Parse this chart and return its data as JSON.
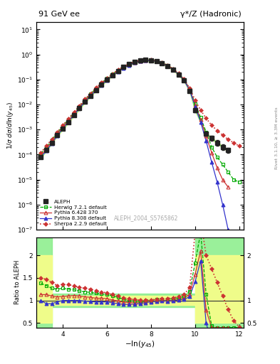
{
  "title_left": "91 GeV ee",
  "title_right": "γ*/Z (Hadronic)",
  "ylabel_main": "1/σ dσ/dln(y_{45})",
  "ylabel_ratio": "Ratio to ALEPH",
  "xlabel": "-ln(y_{45})",
  "watermark": "ALEPH_2004_S5765862",
  "right_label": "Rivet 3.1.10, ≥ 3.3M events",
  "xlim": [
    2.8,
    12.2
  ],
  "ylim_main": [
    1e-07,
    20
  ],
  "ylim_ratio": [
    0.4,
    2.4
  ],
  "aleph_x": [
    3.0,
    3.25,
    3.5,
    3.75,
    4.0,
    4.25,
    4.5,
    4.75,
    5.0,
    5.25,
    5.5,
    5.75,
    6.0,
    6.25,
    6.5,
    6.75,
    7.0,
    7.25,
    7.5,
    7.75,
    8.0,
    8.25,
    8.5,
    8.75,
    9.0,
    9.25,
    9.5,
    9.75,
    10.0,
    10.5,
    10.75,
    11.0,
    11.25,
    11.5
  ],
  "aleph_y": [
    8e-05,
    0.00015,
    0.0003,
    0.0006,
    0.0011,
    0.002,
    0.0038,
    0.007,
    0.013,
    0.022,
    0.038,
    0.062,
    0.098,
    0.15,
    0.22,
    0.31,
    0.41,
    0.5,
    0.57,
    0.6,
    0.59,
    0.54,
    0.45,
    0.35,
    0.25,
    0.16,
    0.09,
    0.035,
    0.006,
    0.0007,
    0.00045,
    0.0003,
    0.0002,
    0.00015
  ],
  "aleph_yerr": [
    1e-05,
    2e-05,
    4e-05,
    8e-05,
    0.00015,
    0.0003,
    0.0005,
    0.0009,
    0.0015,
    0.0025,
    0.004,
    0.006,
    0.009,
    0.013,
    0.018,
    0.025,
    0.03,
    0.035,
    0.04,
    0.04,
    0.04,
    0.035,
    0.03,
    0.025,
    0.02,
    0.013,
    0.008,
    0.004,
    0.001,
    0.00015,
    0.0001,
    8e-05,
    5e-05,
    3e-05
  ],
  "herwig_x": [
    3.0,
    3.25,
    3.5,
    3.75,
    4.0,
    4.25,
    4.5,
    4.75,
    5.0,
    5.25,
    5.5,
    5.75,
    6.0,
    6.25,
    6.5,
    6.75,
    7.0,
    7.25,
    7.5,
    7.75,
    8.0,
    8.25,
    8.5,
    8.75,
    9.0,
    9.25,
    9.5,
    9.75,
    10.0,
    10.25,
    10.5,
    10.75,
    11.0,
    11.25,
    11.5,
    11.75,
    12.0
  ],
  "herwig_y": [
    0.00011,
    0.0002,
    0.00038,
    0.00075,
    0.0014,
    0.0025,
    0.0047,
    0.0085,
    0.0155,
    0.026,
    0.044,
    0.071,
    0.111,
    0.165,
    0.235,
    0.32,
    0.415,
    0.495,
    0.56,
    0.595,
    0.59,
    0.55,
    0.465,
    0.36,
    0.26,
    0.17,
    0.098,
    0.042,
    0.011,
    0.003,
    0.0008,
    0.0002,
    8e-05,
    4e-05,
    2e-05,
    1e-05,
    8e-06
  ],
  "pythia6_x": [
    3.0,
    3.25,
    3.5,
    3.75,
    4.0,
    4.25,
    4.5,
    4.75,
    5.0,
    5.25,
    5.5,
    5.75,
    6.0,
    6.25,
    6.5,
    6.75,
    7.0,
    7.25,
    7.5,
    7.75,
    8.0,
    8.25,
    8.5,
    8.75,
    9.0,
    9.25,
    9.5,
    9.75,
    10.0,
    10.25,
    10.5,
    10.75,
    11.0,
    11.25,
    11.5
  ],
  "pythia6_y": [
    9e-05,
    0.00017,
    0.00033,
    0.00065,
    0.0012,
    0.0022,
    0.0042,
    0.0077,
    0.014,
    0.0235,
    0.04,
    0.065,
    0.102,
    0.152,
    0.218,
    0.298,
    0.392,
    0.475,
    0.545,
    0.585,
    0.582,
    0.535,
    0.452,
    0.35,
    0.252,
    0.165,
    0.095,
    0.04,
    0.0095,
    0.0025,
    0.00055,
    0.00012,
    3e-05,
    1e-05,
    5e-06
  ],
  "pythia8_x": [
    3.0,
    3.25,
    3.5,
    3.75,
    4.0,
    4.25,
    4.5,
    4.75,
    5.0,
    5.25,
    5.5,
    5.75,
    6.0,
    6.25,
    6.5,
    6.75,
    7.0,
    7.25,
    7.5,
    7.75,
    8.0,
    8.25,
    8.5,
    8.75,
    9.0,
    9.25,
    9.5,
    9.75,
    10.0,
    10.25,
    10.5,
    10.75,
    11.0,
    11.25,
    11.5
  ],
  "pythia8_y": [
    8e-05,
    0.00014,
    0.00028,
    0.00058,
    0.0011,
    0.002,
    0.0038,
    0.007,
    0.0128,
    0.0215,
    0.0368,
    0.06,
    0.095,
    0.142,
    0.205,
    0.282,
    0.375,
    0.46,
    0.53,
    0.572,
    0.572,
    0.528,
    0.445,
    0.345,
    0.248,
    0.162,
    0.092,
    0.038,
    0.0085,
    0.002,
    0.00035,
    5e-05,
    8e-06,
    1e-06,
    1e-07
  ],
  "sherpa_x": [
    3.0,
    3.25,
    3.5,
    3.75,
    4.0,
    4.25,
    4.5,
    4.75,
    5.0,
    5.25,
    5.5,
    5.75,
    6.0,
    6.25,
    6.5,
    6.75,
    7.0,
    7.25,
    7.5,
    7.75,
    8.0,
    8.25,
    8.5,
    8.75,
    9.0,
    9.25,
    9.5,
    9.75,
    10.0,
    10.25,
    10.5,
    10.75,
    11.0,
    11.25,
    11.5,
    11.75,
    12.0
  ],
  "sherpa_y": [
    0.00012,
    0.00022,
    0.00042,
    0.0008,
    0.0015,
    0.0027,
    0.005,
    0.009,
    0.0165,
    0.0275,
    0.0465,
    0.074,
    0.115,
    0.17,
    0.242,
    0.328,
    0.425,
    0.51,
    0.575,
    0.608,
    0.6,
    0.555,
    0.47,
    0.365,
    0.265,
    0.175,
    0.102,
    0.045,
    0.015,
    0.006,
    0.0028,
    0.0015,
    0.0009,
    0.0006,
    0.0004,
    0.0003,
    0.00022
  ],
  "ratio_herwig_x": [
    3.0,
    3.25,
    3.5,
    3.75,
    4.0,
    4.25,
    4.5,
    4.75,
    5.0,
    5.25,
    5.5,
    5.75,
    6.0,
    6.25,
    6.5,
    6.75,
    7.0,
    7.25,
    7.5,
    7.75,
    8.0,
    8.25,
    8.5,
    8.75,
    9.0,
    9.25,
    9.5,
    9.75,
    10.0,
    10.25,
    10.5,
    10.75,
    11.0,
    11.25,
    11.5,
    11.75,
    12.0
  ],
  "ratio_herwig_y": [
    1.38,
    1.33,
    1.27,
    1.25,
    1.27,
    1.25,
    1.24,
    1.21,
    1.19,
    1.18,
    1.16,
    1.15,
    1.13,
    1.1,
    1.07,
    1.03,
    1.01,
    0.99,
    0.98,
    0.99,
    1.0,
    1.02,
    1.03,
    1.03,
    1.04,
    1.06,
    1.09,
    1.2,
    1.83,
    2.5,
    1.14,
    0.44,
    0.4,
    0.4,
    0.4,
    0.4,
    0.4
  ],
  "ratio_pythia6_x": [
    3.0,
    3.25,
    3.5,
    3.75,
    4.0,
    4.25,
    4.5,
    4.75,
    5.0,
    5.25,
    5.5,
    5.75,
    6.0,
    6.25,
    6.5,
    6.75,
    7.0,
    7.25,
    7.5,
    7.75,
    8.0,
    8.25,
    8.5,
    8.75,
    9.0,
    9.25,
    9.5,
    9.75,
    10.0,
    10.25,
    10.5,
    10.75,
    11.0,
    11.25,
    11.5
  ],
  "ratio_pythia6_y": [
    1.13,
    1.13,
    1.1,
    1.08,
    1.09,
    1.1,
    1.11,
    1.1,
    1.08,
    1.07,
    1.05,
    1.05,
    1.04,
    1.01,
    0.99,
    0.96,
    0.955,
    0.95,
    0.955,
    0.975,
    0.985,
    0.99,
    1.005,
    1.0,
    1.008,
    1.03,
    1.055,
    1.14,
    1.58,
    2.1,
    0.79,
    0.4,
    0.4,
    0.4,
    0.4
  ],
  "ratio_pythia8_x": [
    3.0,
    3.25,
    3.5,
    3.75,
    4.0,
    4.25,
    4.5,
    4.75,
    5.0,
    5.25,
    5.5,
    5.75,
    6.0,
    6.25,
    6.5,
    6.75,
    7.0,
    7.25,
    7.5,
    7.75,
    8.0,
    8.25,
    8.5,
    8.75,
    9.0,
    9.25,
    9.5,
    9.75,
    10.0,
    10.25,
    10.5,
    10.75,
    11.0,
    11.25,
    11.5
  ],
  "ratio_pythia8_y": [
    1.0,
    0.93,
    0.93,
    0.97,
    1.0,
    1.0,
    1.0,
    1.0,
    0.985,
    0.977,
    0.968,
    0.968,
    0.97,
    0.947,
    0.932,
    0.91,
    0.915,
    0.92,
    0.93,
    0.953,
    0.97,
    0.978,
    0.989,
    0.986,
    0.992,
    1.013,
    1.022,
    1.086,
    1.417,
    1.88,
    0.5,
    0.072,
    0.023,
    0.008,
    0.003
  ],
  "ratio_sherpa_x": [
    3.0,
    3.25,
    3.5,
    3.75,
    4.0,
    4.25,
    4.5,
    4.75,
    5.0,
    5.25,
    5.5,
    5.75,
    6.0,
    6.25,
    6.5,
    6.75,
    7.0,
    7.25,
    7.5,
    7.75,
    8.0,
    8.25,
    8.5,
    8.75,
    9.0,
    9.25,
    9.5,
    9.75,
    10.0,
    10.25,
    10.5,
    10.75,
    11.0,
    11.25,
    11.5,
    11.75,
    12.0
  ],
  "ratio_sherpa_y": [
    1.5,
    1.47,
    1.4,
    1.33,
    1.36,
    1.35,
    1.32,
    1.29,
    1.27,
    1.25,
    1.22,
    1.19,
    1.17,
    1.13,
    1.1,
    1.058,
    1.037,
    1.02,
    1.008,
    1.013,
    1.017,
    1.028,
    1.044,
    1.043,
    1.06,
    1.09,
    1.133,
    1.286,
    2.5,
    2.8,
    2.0,
    1.7,
    1.4,
    1.1,
    0.8,
    0.55,
    0.42
  ],
  "band_green_lo_x": [
    2.8,
    3.5,
    3.5,
    10.0,
    10.0,
    12.2
  ],
  "band_green_lo_y": [
    0.4,
    0.4,
    0.85,
    0.85,
    0.4,
    0.4
  ],
  "band_green_hi_y": [
    2.4,
    2.4,
    1.15,
    1.15,
    2.4,
    2.4
  ],
  "band_yellow_lo_x": [
    2.8,
    3.5,
    3.5,
    10.0,
    10.0,
    12.2
  ],
  "band_yellow_lo_y": [
    0.5,
    0.5,
    0.9,
    0.9,
    0.5,
    0.5
  ],
  "band_yellow_hi_y": [
    2.0,
    2.0,
    1.1,
    1.1,
    2.0,
    2.0
  ],
  "color_aleph": "#222222",
  "color_herwig": "#00aa00",
  "color_pythia6": "#cc3333",
  "color_pythia8": "#3333cc",
  "color_sherpa": "#cc3333"
}
